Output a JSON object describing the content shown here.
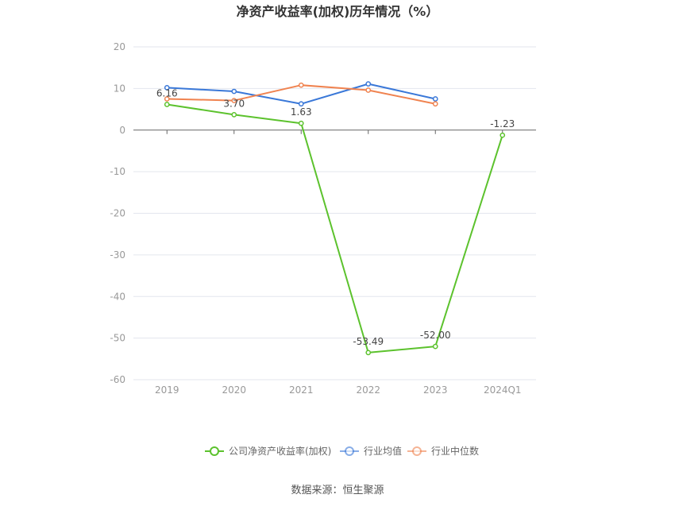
{
  "chart_data": {
    "type": "line",
    "title": "净资产收益率(加权)历年情况（%）",
    "categories": [
      "2019",
      "2020",
      "2021",
      "2022",
      "2023",
      "2024Q1"
    ],
    "ylim": [
      -60,
      20
    ],
    "yticks": [
      20,
      10,
      0,
      -10,
      -20,
      -30,
      -40,
      -50,
      -60
    ],
    "grid": true,
    "legend_position": "bottom",
    "series": [
      {
        "name": "公司净资产收益率(加权)",
        "color": "#5cc22d",
        "values": [
          6.16,
          3.7,
          1.63,
          -53.49,
          -52.0,
          -1.23
        ],
        "labels": [
          "6.16",
          "3.70",
          "1.63",
          "-53.49",
          "-52.00",
          "-1.23"
        ]
      },
      {
        "name": "行业均值",
        "color": "#3a78d8",
        "values": [
          10.2,
          9.3,
          6.3,
          11.1,
          7.5,
          null
        ]
      },
      {
        "name": "行业中位数",
        "color": "#f08350",
        "values": [
          7.5,
          7.1,
          10.8,
          9.6,
          6.3,
          null
        ]
      }
    ],
    "source": "数据来源：恒生聚源"
  }
}
